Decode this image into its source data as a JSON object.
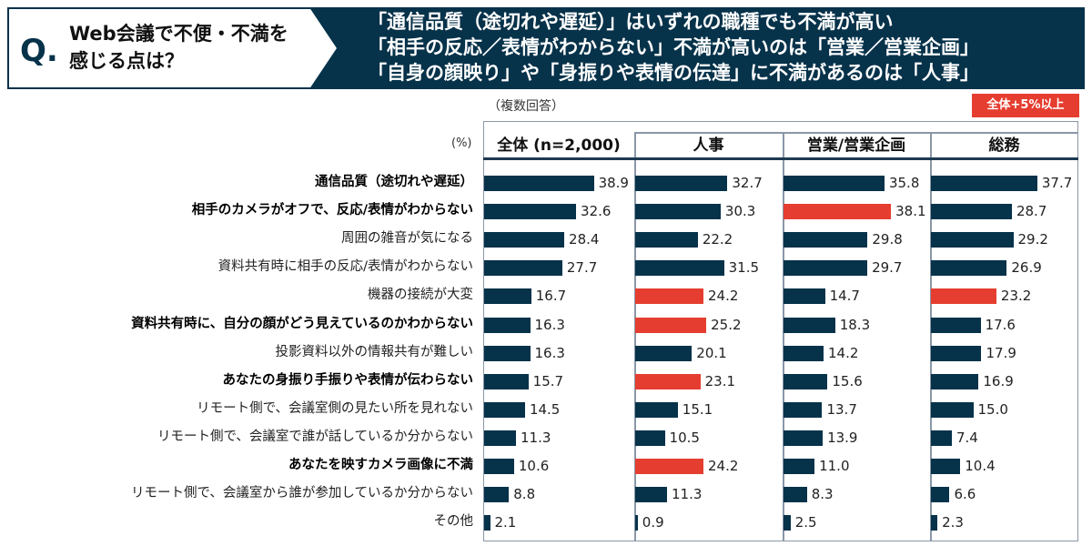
{
  "header": {
    "q_mark": "Q.",
    "question_lines": [
      "Web会議で不便・不満を",
      "感じる点は？"
    ],
    "headlines": [
      "「通信品質（途切れや遅延）」はいずれの職種でも不満が高い",
      "「相手の反応／表情がわからない」不満が高いのは「営業／営業企画」",
      "「自身の顔映り」や「身振りや表情の伝達」に不満があるのは「人事」"
    ]
  },
  "note": "（複数回答）",
  "legend_badge": "全体+5%以上",
  "colors": {
    "navy": "#06324a",
    "highlight": "#e53e30"
  },
  "chart_data": {
    "type": "bar",
    "orientation": "horizontal",
    "unit": "(%)",
    "categories": [
      "通信品質（途切れや遅延）",
      "相手のカメラがオフで、反応/表情がわからない",
      "周囲の雑音が気になる",
      "資料共有時に相手の反応/表情がわからない",
      "機器の接続が大変",
      "資料共有時に、自分の顔がどう見えているのかわからない",
      "投影資料以外の情報共有が難しい",
      "あなたの身振り手振りや表情が伝わらない",
      "リモート側で、会議室側の見たい所を見れない",
      "リモート側で、会議室で誰が話しているか分からない",
      "あなたを映すカメラ画像に不満",
      "リモート側で、会議室から誰が参加しているか分からない",
      "その他"
    ],
    "bold_categories": [
      0,
      1,
      5,
      7,
      10
    ],
    "series": [
      {
        "name": "全体 (n=2,000)",
        "values": [
          38.9,
          32.6,
          28.4,
          27.7,
          16.7,
          16.3,
          16.3,
          15.7,
          14.5,
          11.3,
          10.6,
          8.8,
          2.1
        ],
        "highlighted": []
      },
      {
        "name": "人事",
        "values": [
          32.7,
          30.3,
          22.2,
          31.5,
          24.2,
          25.2,
          20.1,
          23.1,
          15.1,
          10.5,
          24.2,
          11.3,
          0.9
        ],
        "highlighted": [
          4,
          5,
          7,
          10
        ]
      },
      {
        "name": "営業/営業企画",
        "values": [
          35.8,
          38.1,
          29.8,
          29.7,
          14.7,
          18.3,
          14.2,
          15.6,
          13.7,
          13.9,
          11.0,
          8.3,
          2.5
        ],
        "highlighted": [
          1
        ]
      },
      {
        "name": "総務",
        "values": [
          37.7,
          28.7,
          29.2,
          26.9,
          23.2,
          17.6,
          17.9,
          16.9,
          15.0,
          7.4,
          10.4,
          6.6,
          2.3
        ],
        "highlighted": [
          4
        ]
      }
    ],
    "xlim": [
      0,
      45
    ]
  }
}
